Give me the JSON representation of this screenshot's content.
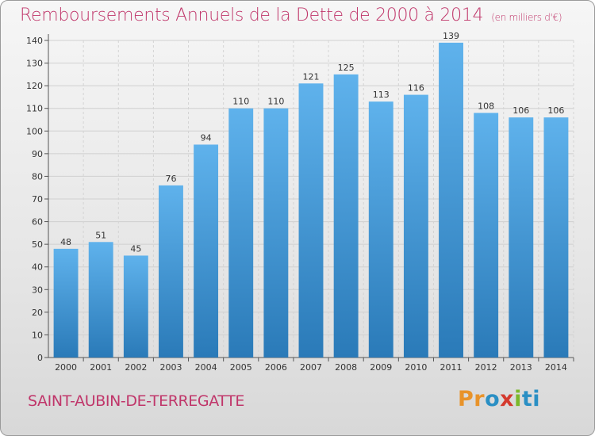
{
  "title": "Remboursements Annuels de la Dette de 2000 à 2014",
  "unit": "(en milliers d'€)",
  "commune": "SAINT-AUBIN-DE-TERREGATTE",
  "logo": {
    "p1": "Pr",
    "p2": "o",
    "p3": "x",
    "p4": "i",
    "p5": "ti"
  },
  "colors": {
    "bar_top": "#5fb2ec",
    "bar_bottom": "#2a7ab8",
    "title": "#c0366a"
  },
  "chart_data": {
    "type": "bar",
    "title": "Remboursements Annuels de la Dette de 2000 à 2014",
    "xlabel": "",
    "ylabel": "",
    "ylim": [
      0,
      140
    ],
    "yticks": [
      0,
      10,
      20,
      30,
      40,
      50,
      60,
      70,
      80,
      90,
      100,
      110,
      120,
      130,
      140
    ],
    "categories": [
      "2000",
      "2001",
      "2002",
      "2003",
      "2004",
      "2005",
      "2006",
      "2007",
      "2008",
      "2009",
      "2010",
      "2011",
      "2012",
      "2013",
      "2014"
    ],
    "values": [
      48,
      51,
      45,
      76,
      94,
      110,
      110,
      121,
      125,
      113,
      116,
      139,
      108,
      106,
      106
    ],
    "grid": true
  }
}
